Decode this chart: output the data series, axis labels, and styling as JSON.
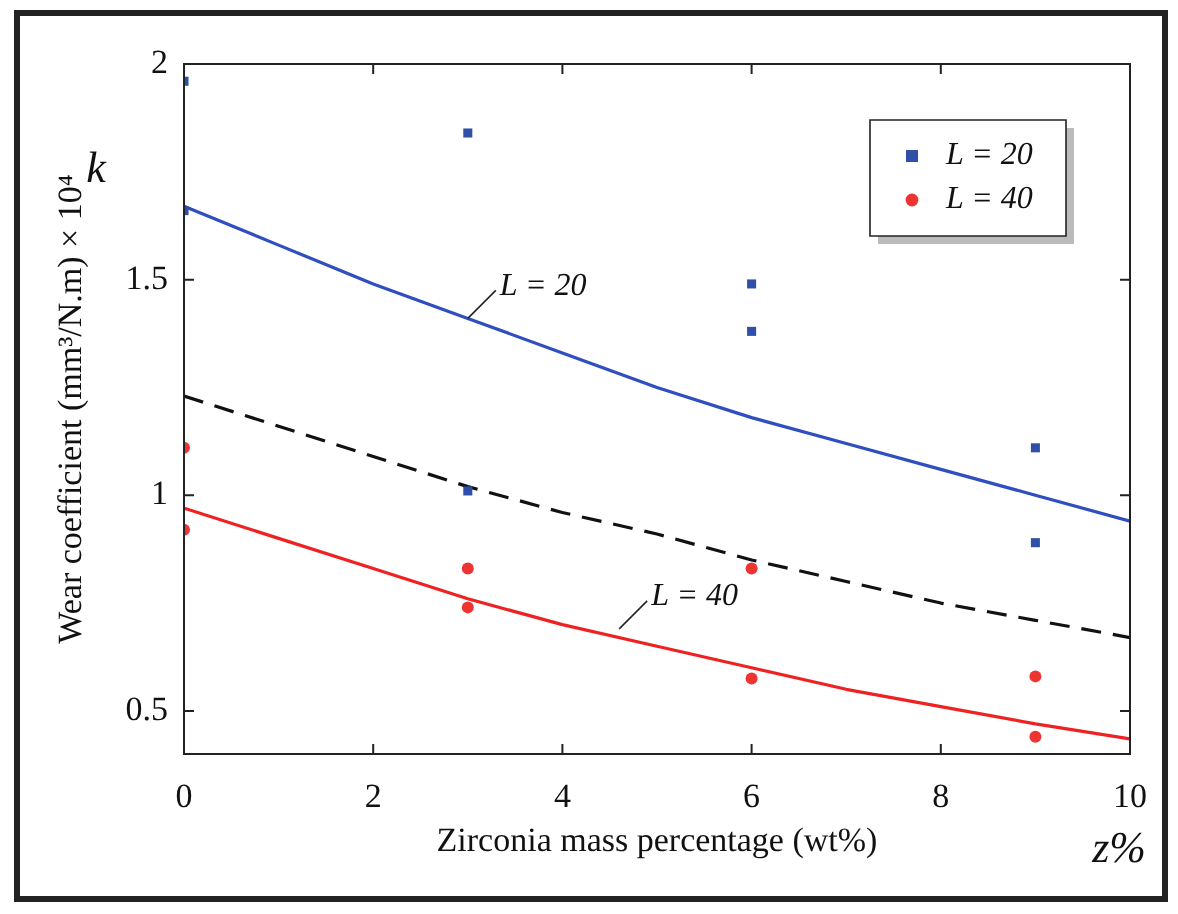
{
  "chart_data": {
    "type": "scatter",
    "xlabel": "Zirconia mass percentage (wt%)",
    "ylabel": "Wear coefficient (mm³/N.m) × 10⁴",
    "xlim": [
      0,
      10
    ],
    "ylim": [
      0.4,
      2
    ],
    "xticks": [
      0,
      2,
      4,
      6,
      8,
      10
    ],
    "yticks": [
      0.5,
      1,
      1.5,
      2
    ],
    "grid": false,
    "legend": "top right",
    "series": [
      {
        "name": "L = 20",
        "marker": "square",
        "color": "#2f4fa8",
        "x": [
          0,
          0,
          3,
          3,
          6,
          6,
          9,
          9
        ],
        "values": [
          1.96,
          1.66,
          1.84,
          1.01,
          1.49,
          1.38,
          1.11,
          0.89
        ]
      },
      {
        "name": "L = 40",
        "marker": "circle",
        "color": "#ee3333",
        "x": [
          0,
          0,
          3,
          3,
          6,
          6,
          9,
          9
        ],
        "values": [
          1.11,
          0.92,
          0.83,
          0.74,
          0.83,
          0.575,
          0.58,
          0.44
        ]
      },
      {
        "type": "line",
        "marker": "none",
        "line_style": "solid",
        "color": "#2f4fc0",
        "x": [
          0,
          1,
          2,
          3,
          4,
          5,
          6,
          7,
          8,
          9,
          10
        ],
        "values": [
          1.67,
          1.58,
          1.49,
          1.41,
          1.33,
          1.25,
          1.18,
          1.12,
          1.06,
          1.0,
          0.94
        ]
      },
      {
        "type": "line",
        "marker": "none",
        "line_style": "dashed",
        "color": "#111111",
        "x": [
          0,
          1,
          2,
          3,
          4,
          5,
          6,
          7,
          8,
          9,
          10
        ],
        "values": [
          1.23,
          1.16,
          1.09,
          1.02,
          0.96,
          0.91,
          0.85,
          0.8,
          0.75,
          0.71,
          0.67
        ]
      },
      {
        "type": "line",
        "marker": "none",
        "line_style": "solid",
        "color": "#ee2222",
        "x": [
          0,
          1,
          2,
          3,
          4,
          5,
          6,
          7,
          8,
          9,
          10
        ],
        "values": [
          0.97,
          0.9,
          0.83,
          0.76,
          0.7,
          0.65,
          0.6,
          0.55,
          0.51,
          0.47,
          0.435
        ]
      }
    ],
    "annotations": [
      "k",
      "z%",
      {
        "text": "L = 20",
        "x": 3,
        "y": 1.41
      },
      {
        "text": "L = 40",
        "x": 4.6,
        "y": 0.69
      }
    ]
  }
}
